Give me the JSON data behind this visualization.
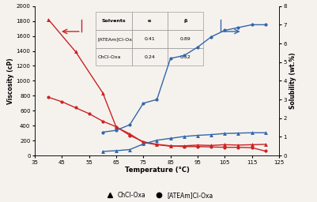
{
  "temp_red_circle": [
    40,
    45,
    50,
    55,
    60,
    65,
    70,
    75,
    80,
    85,
    90,
    95,
    100,
    105,
    110,
    115,
    120
  ],
  "visc_red_circle": [
    780,
    720,
    640,
    560,
    460,
    385,
    270,
    185,
    150,
    130,
    120,
    120,
    115,
    110,
    110,
    105,
    60
  ],
  "temp_red_tri": [
    40,
    50,
    60,
    65,
    70,
    75,
    80,
    85,
    90,
    95,
    100,
    105,
    110,
    115,
    120
  ],
  "visc_red_tri": [
    1820,
    1390,
    840,
    380,
    290,
    175,
    145,
    125,
    130,
    140,
    135,
    145,
    140,
    145,
    150
  ],
  "temp_blue_circle": [
    60,
    65,
    70,
    75,
    80,
    85,
    90,
    95,
    100,
    105,
    110,
    115,
    120
  ],
  "sol_blue_circle": [
    1.25,
    1.35,
    1.65,
    2.8,
    3.0,
    5.2,
    5.35,
    5.8,
    6.35,
    6.7,
    6.85,
    7.0,
    7.0
  ],
  "temp_blue_tri": [
    60,
    65,
    70,
    75,
    80,
    85,
    90,
    95,
    100,
    105,
    110,
    115,
    120
  ],
  "sol_blue_tri": [
    0.22,
    0.26,
    0.32,
    0.62,
    0.82,
    0.92,
    1.02,
    1.08,
    1.12,
    1.18,
    1.2,
    1.22,
    1.22
  ],
  "ylim_left": [
    0,
    2000
  ],
  "ylim_right": [
    0,
    8
  ],
  "xlim": [
    35,
    125
  ],
  "xticks": [
    35,
    45,
    55,
    65,
    75,
    85,
    95,
    105,
    115,
    125
  ],
  "yticks_left": [
    0,
    200,
    400,
    600,
    800,
    1000,
    1200,
    1400,
    1600,
    1800,
    2000
  ],
  "yticks_right": [
    0,
    1,
    2,
    3,
    4,
    5,
    6,
    7,
    8
  ],
  "xlabel": "Temperature (°C)",
  "ylabel_left": "Viscosity (cP)",
  "ylabel_right": "Solubility (wt.%)",
  "legend_labels": [
    "ChCl-Oxa",
    "[ATEAm]Cl-Oxa"
  ],
  "red_color": "#cc2222",
  "blue_color": "#3366aa",
  "table_solvents": [
    "[ATEAm]Cl-Oxa",
    "ChCl-Oxa"
  ],
  "table_alpha": [
    "0.41",
    "0.24"
  ],
  "table_beta": [
    "0.89",
    "0.52"
  ],
  "bg_color": "#f5f2ee"
}
